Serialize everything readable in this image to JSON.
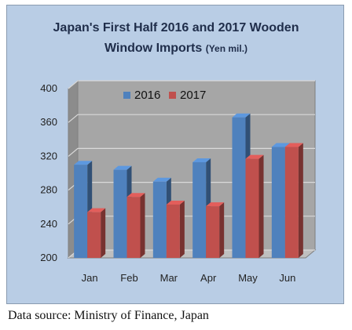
{
  "chart_data": {
    "type": "bar",
    "title_line1": "Japan's First Half 2016 and 2017 Wooden",
    "title_line2": "Window Imports",
    "title_unit": "(Yen mil.)",
    "categories": [
      "Jan",
      "Feb",
      "Mar",
      "Apr",
      "May",
      "Jun"
    ],
    "series": [
      {
        "name": "2016",
        "values": [
          310,
          304,
          290,
          313,
          366,
          331
        ],
        "color": "#4f81bd"
      },
      {
        "name": "2017",
        "values": [
          254,
          272,
          263,
          261,
          317,
          331
        ],
        "color": "#c0504d"
      }
    ],
    "y_ticks": [
      "400",
      "360",
      "320",
      "280",
      "240",
      "200"
    ],
    "ylim": [
      200,
      400
    ],
    "grid": true,
    "legend": "top-center",
    "style": "3d-clustered-column"
  },
  "source": "Data source: Ministry of Finance, Japan"
}
